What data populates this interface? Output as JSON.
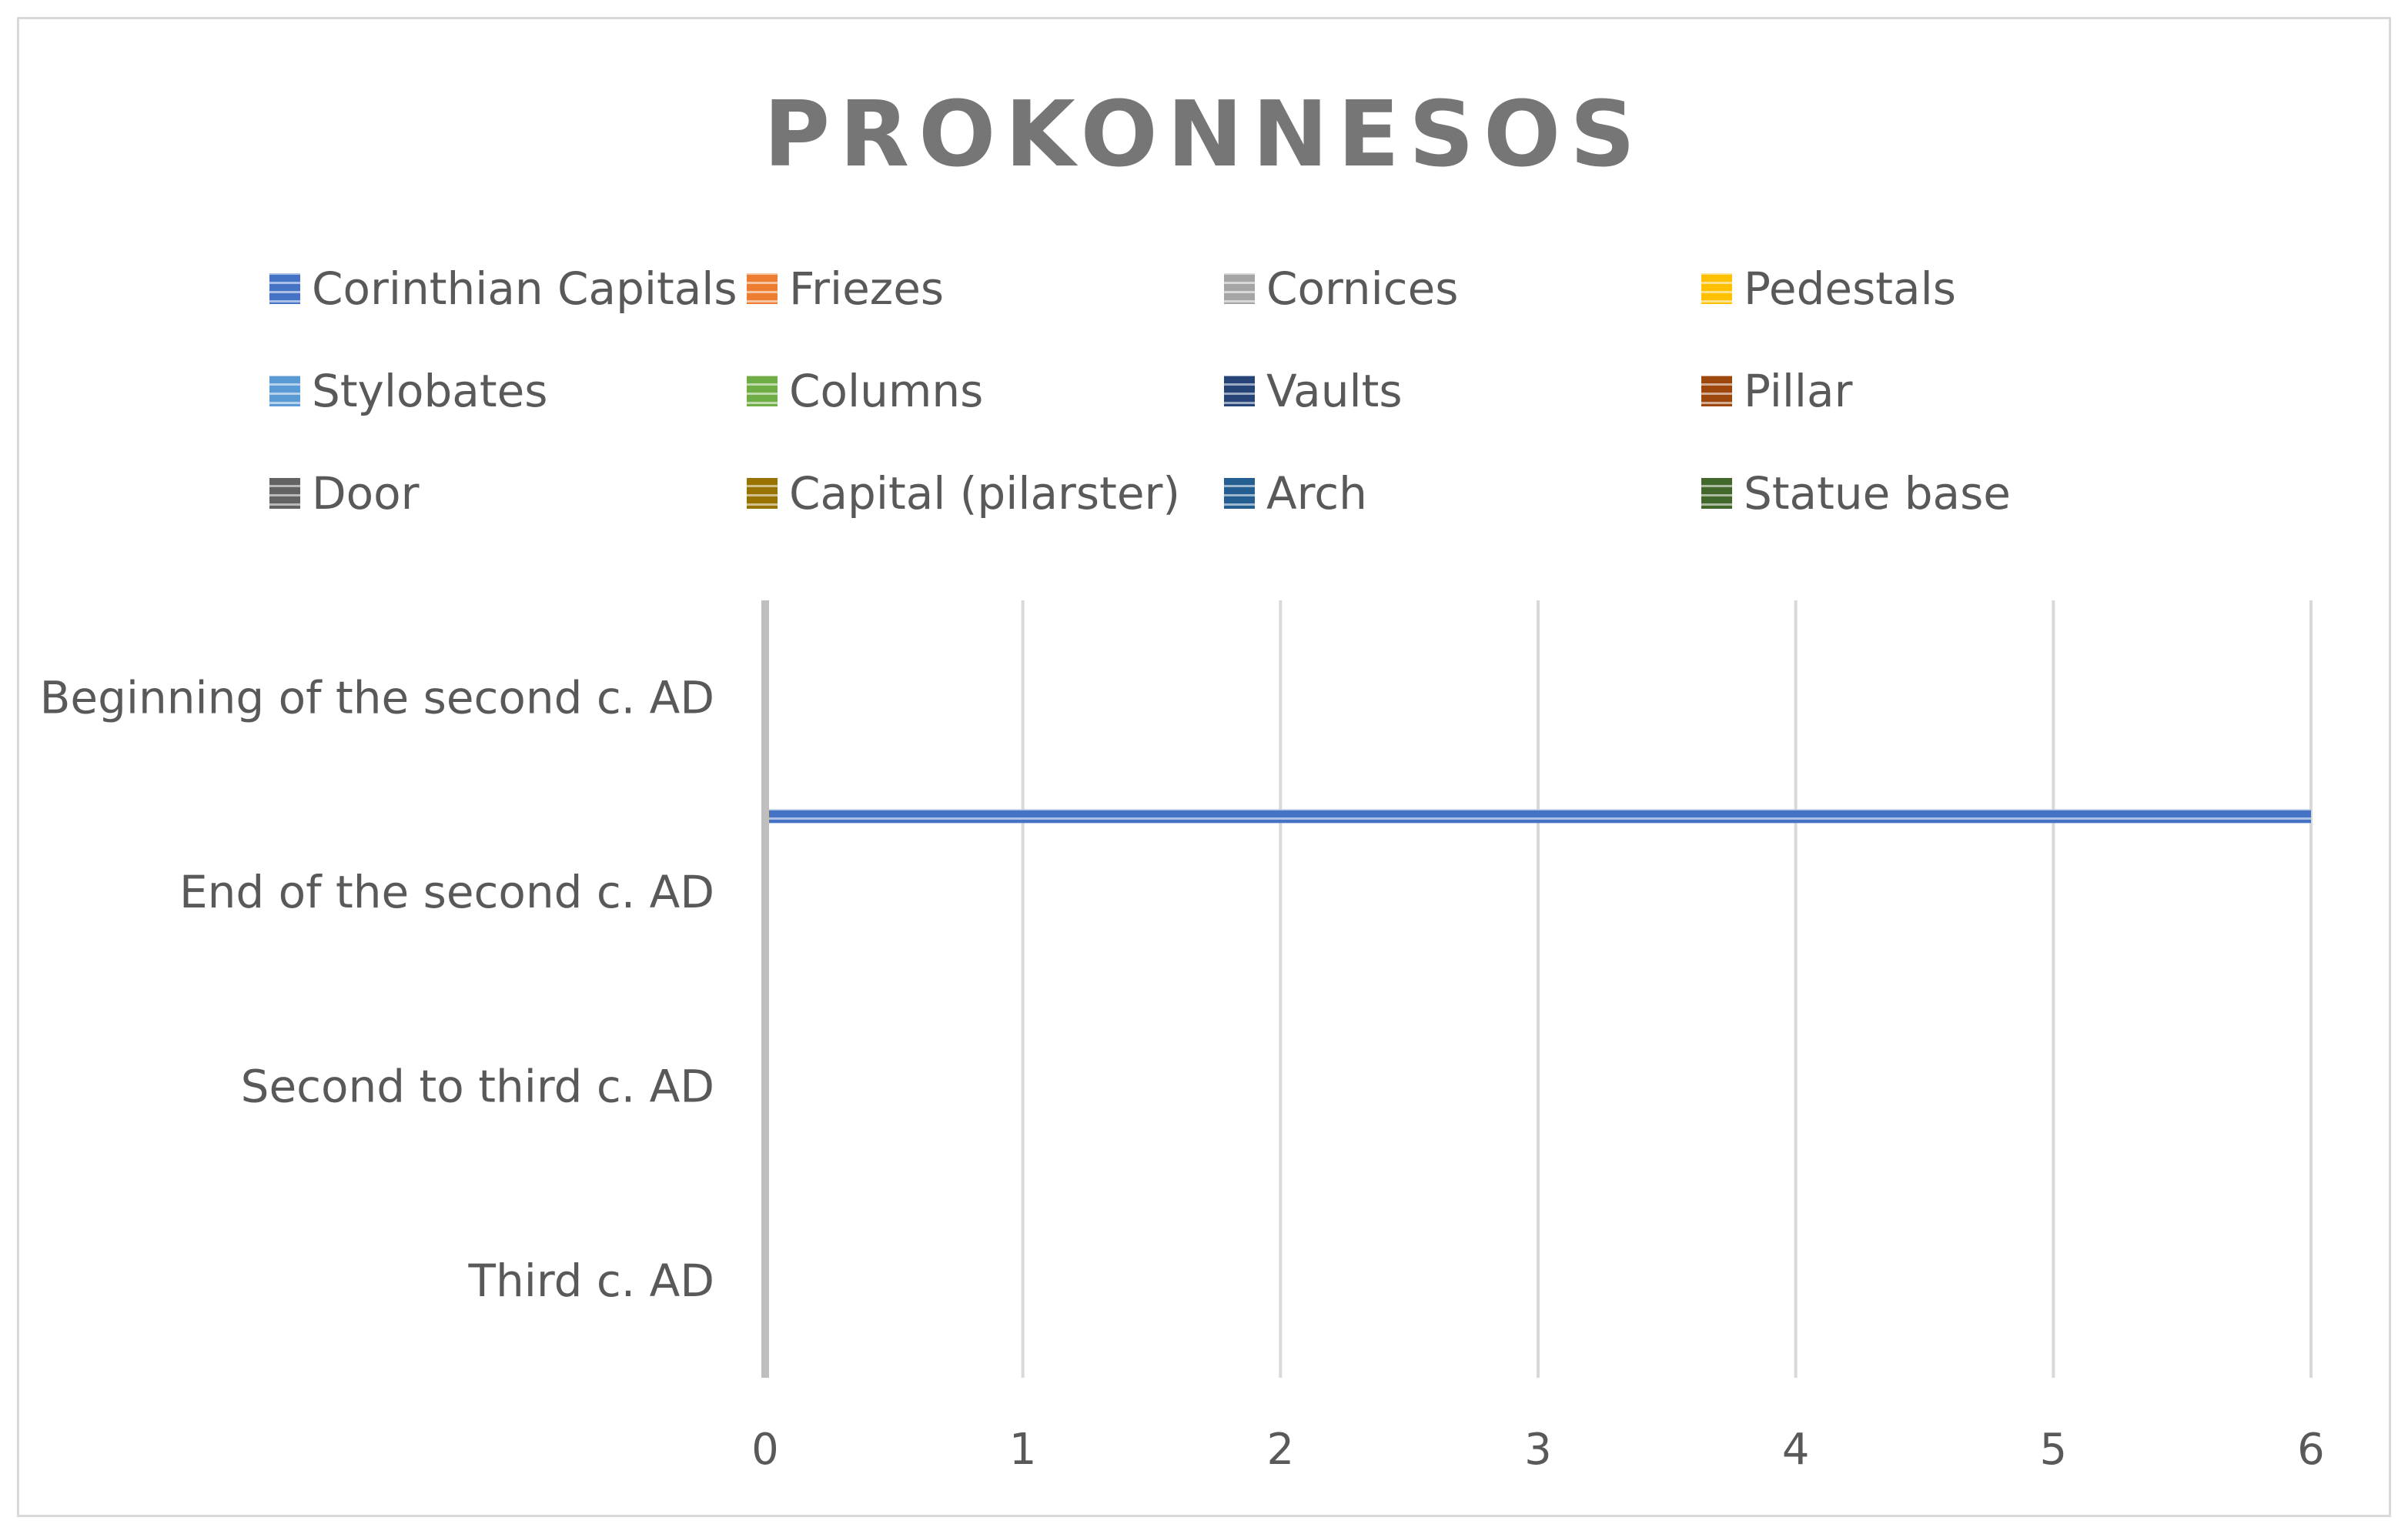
{
  "chart_data": {
    "type": "bar",
    "orientation": "horizontal",
    "title": "PROKONNESOS",
    "xlabel": "",
    "ylabel": "",
    "categories": [
      "Beginning of the second c. AD",
      "End of the second c. AD",
      "Second to third c. AD",
      "Third c. AD"
    ],
    "series": [
      {
        "name": "Corinthian Capitals",
        "color": "#4472c4",
        "values": [
          0,
          6,
          0,
          0
        ]
      },
      {
        "name": "Friezes",
        "color": "#ed7d31",
        "values": [
          0,
          0,
          0,
          0
        ]
      },
      {
        "name": "Cornices",
        "color": "#a5a5a5",
        "values": [
          0,
          0,
          0,
          0
        ]
      },
      {
        "name": "Pedestals",
        "color": "#ffc000",
        "values": [
          0,
          0,
          0,
          0
        ]
      },
      {
        "name": "Stylobates",
        "color": "#5b9bd5",
        "values": [
          0,
          0,
          0,
          0
        ]
      },
      {
        "name": "Columns",
        "color": "#70ad47",
        "values": [
          0,
          0,
          0,
          0
        ]
      },
      {
        "name": "Vaults",
        "color": "#264478",
        "values": [
          0,
          0,
          0,
          0
        ]
      },
      {
        "name": "Pillar",
        "color": "#9e480e",
        "values": [
          0,
          0,
          0,
          0
        ]
      },
      {
        "name": "Door",
        "color": "#636363",
        "values": [
          0,
          0,
          0,
          0
        ]
      },
      {
        "name": "Capital (pilarster)",
        "color": "#997300",
        "values": [
          0,
          0,
          0,
          0
        ]
      },
      {
        "name": "Arch",
        "color": "#255e91",
        "values": [
          0,
          0,
          0,
          0
        ]
      },
      {
        "name": "Statue base",
        "color": "#43682b",
        "values": [
          0,
          0,
          0,
          0
        ]
      }
    ],
    "xlim": [
      0,
      6
    ],
    "xticks": [
      "0",
      "1",
      "2",
      "3",
      "4",
      "5",
      "6"
    ],
    "grid": true,
    "legend_position": "top",
    "bar_fill_pattern": "horizontal-stripes"
  }
}
